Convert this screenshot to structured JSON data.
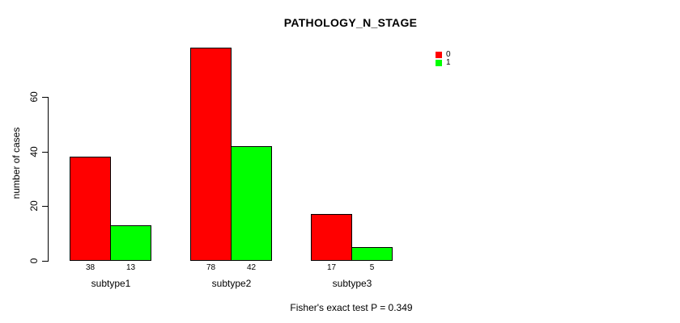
{
  "chart_data": {
    "type": "bar",
    "title": "PATHOLOGY_N_STAGE",
    "ylabel": "number of cases",
    "xlabel": "",
    "categories": [
      "subtype1",
      "subtype2",
      "subtype3"
    ],
    "series": [
      {
        "name": "0",
        "color": "#ff0000",
        "values": [
          38,
          78,
          17
        ]
      },
      {
        "name": "1",
        "color": "#00ff00",
        "values": [
          13,
          42,
          5
        ]
      }
    ],
    "yticks": [
      0,
      20,
      40,
      60
    ],
    "ylim": [
      0,
      78
    ],
    "grid": false,
    "legend_position": "top-right",
    "bar_value_labels": [
      [
        "38",
        "13"
      ],
      [
        "78",
        "42"
      ],
      [
        "17",
        "5"
      ]
    ],
    "annotation": "Fisher's exact test P = 0.349"
  },
  "colors": {
    "background": "#ffffff",
    "axis": "#000000",
    "text": "#000000",
    "bar_border": "#000000"
  }
}
